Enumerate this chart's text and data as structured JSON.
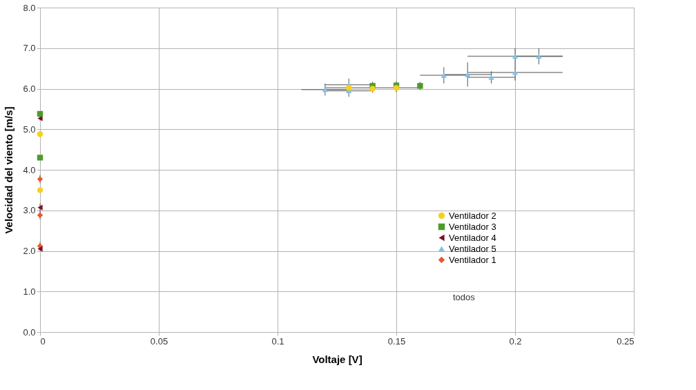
{
  "chart_data": {
    "type": "scatter",
    "xlabel": "Voltaje [V]",
    "ylabel": "Velocidad del viento [m/s]",
    "xlim": [
      0,
      0.25
    ],
    "xticks": [
      0,
      0.05,
      0.1,
      0.15,
      0.2,
      0.25
    ],
    "ylim": [
      0,
      8
    ],
    "yticks": [
      {
        "value": 0,
        "label": "0.0"
      },
      {
        "value": 1,
        "label": "1.0"
      },
      {
        "value": 2,
        "label": "2.0"
      },
      {
        "value": 3,
        "label": "3.0"
      },
      {
        "value": 4,
        "label": "4.0"
      },
      {
        "value": 5,
        "label": "5.0"
      },
      {
        "value": 6,
        "label": "6.0"
      },
      {
        "value": 7,
        "label": "7.0"
      },
      {
        "value": 8,
        "label": "8.0"
      }
    ],
    "grid": true,
    "legend": "bottom right",
    "annotations": [
      "todos"
    ],
    "series": [
      {
        "name": "Ventilador 2",
        "color": "#f5d01f",
        "marker": "circle",
        "x": [
          0,
          0,
          0.13,
          0.14,
          0.15
        ],
        "values": [
          4.88,
          3.5,
          6.02,
          6.0,
          6.02
        ],
        "errors": [
          null,
          null,
          0.1,
          0.1,
          0.1
        ],
        "xerrors": [
          null,
          null,
          0.01,
          null,
          0.01
        ]
      },
      {
        "name": "Ventilador 3",
        "color": "#4f9a2a",
        "marker": "square",
        "x": [
          0,
          0,
          0.14,
          0.15,
          0.16
        ],
        "values": [
          5.38,
          4.3,
          6.07,
          6.08,
          6.07
        ],
        "errors": [
          null,
          null,
          0.1,
          0.1,
          0.1
        ]
      },
      {
        "name": "Ventilador 4",
        "color": "#7b0f26",
        "marker": "triangle-left",
        "x": [
          0,
          0,
          0
        ],
        "values": [
          5.27,
          3.07,
          2.05
        ],
        "errors": [
          0.05,
          0.1,
          0.05
        ],
        "xerrors": [
          null,
          null,
          null
        ]
      },
      {
        "name": "Ventilador 5",
        "color": "#7fc2ea",
        "marker": "triangle",
        "x": [
          0.12,
          0.13,
          0.13,
          0.17,
          0.18,
          0.19,
          0.2,
          0.2,
          0.21
        ],
        "values": [
          5.98,
          5.95,
          6.1,
          6.33,
          6.35,
          6.28,
          6.4,
          6.8,
          6.8
        ],
        "errors": [
          0.15,
          0.15,
          0.15,
          0.2,
          0.3,
          0.15,
          0.2,
          0.2,
          0.2
        ],
        "xerrors": [
          0.01,
          0.01,
          0.01,
          0.01,
          0.01,
          0.01,
          0.02,
          0.02,
          0.01
        ]
      },
      {
        "name": "Ventilador 1",
        "color": "#e8592a",
        "marker": "diamond",
        "x": [
          0,
          0,
          0
        ],
        "values": [
          3.77,
          2.88,
          2.12
        ],
        "errors": [
          0.1,
          0.1,
          0.1
        ],
        "xerrors": [
          null,
          null,
          null
        ]
      }
    ]
  }
}
